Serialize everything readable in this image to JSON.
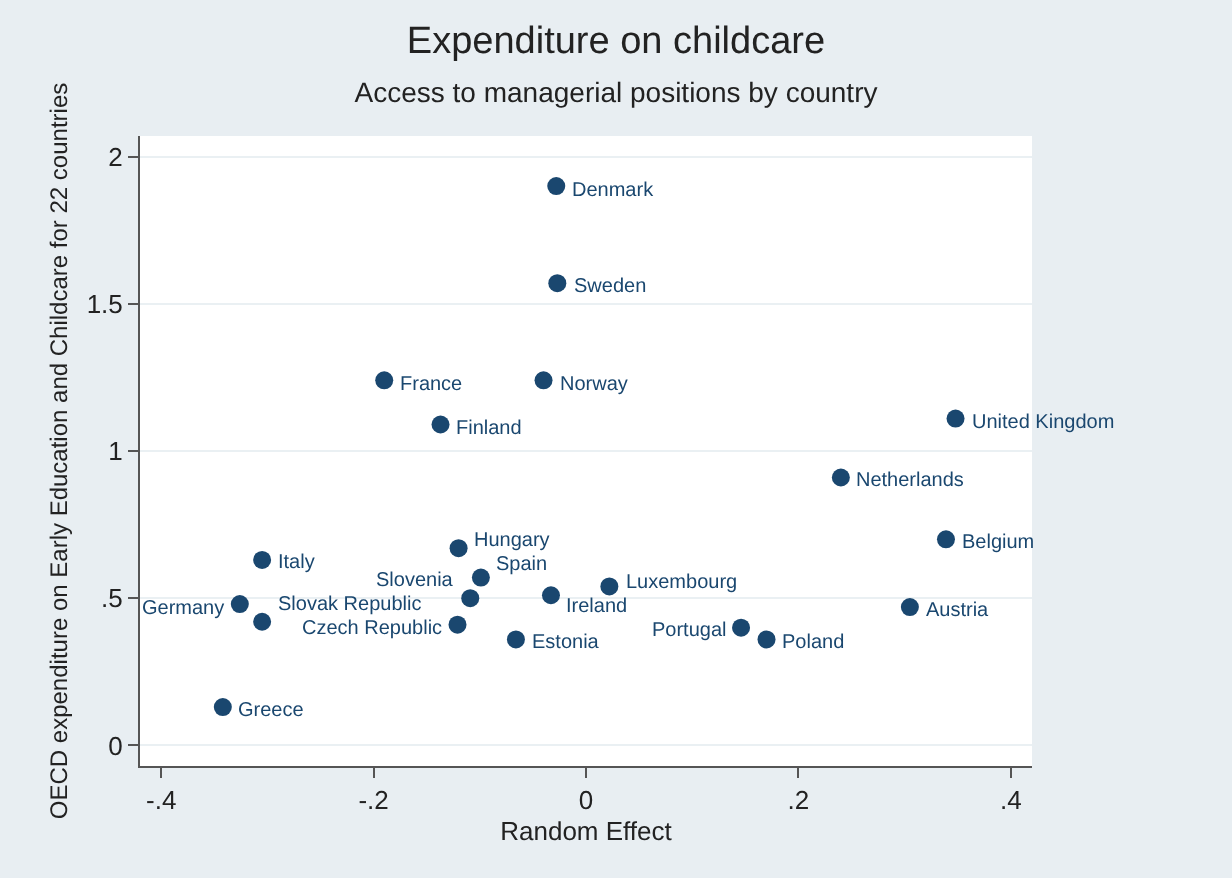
{
  "chart_data": {
    "type": "scatter",
    "title": "Expenditure on childcare",
    "subtitle": "Access to managerial positions by country",
    "xlabel": "Random Effect",
    "ylabel": "OECD expenditure on Early Education and Childcare for 22 countries",
    "x": [
      -0.028,
      -0.027,
      -0.19,
      -0.04,
      -0.137,
      0.348,
      0.24,
      0.339,
      0.305,
      0.022,
      0.146,
      0.17,
      -0.305,
      -0.326,
      -0.305,
      -0.342,
      -0.12,
      -0.099,
      -0.109,
      -0.033,
      -0.121,
      -0.066
    ],
    "series": [
      {
        "color": "#1a476f",
        "values": [
          1.9,
          1.57,
          1.24,
          1.24,
          1.09,
          1.11,
          0.91,
          0.7,
          0.47,
          0.54,
          0.4,
          0.36,
          0.63,
          0.48,
          0.42,
          0.13,
          0.67,
          0.57,
          0.5,
          0.51,
          0.41,
          0.36
        ]
      }
    ],
    "annotations": [
      {
        "text": "Denmark",
        "x": -0.028,
        "y": 1.9
      },
      {
        "text": "Sweden",
        "x": -0.027,
        "y": 1.57
      },
      {
        "text": "France",
        "x": -0.19,
        "y": 1.24
      },
      {
        "text": "Norway",
        "x": -0.04,
        "y": 1.24
      },
      {
        "text": "Finland",
        "x": -0.137,
        "y": 1.09
      },
      {
        "text": "United Kingdom",
        "x": 0.348,
        "y": 1.11
      },
      {
        "text": "Netherlands",
        "x": 0.24,
        "y": 0.91
      },
      {
        "text": "Belgium",
        "x": 0.339,
        "y": 0.7
      },
      {
        "text": "Austria",
        "x": 0.305,
        "y": 0.47
      },
      {
        "text": "Luxembourg",
        "x": 0.022,
        "y": 0.54
      },
      {
        "text": "Portugal",
        "x": 0.146,
        "y": 0.4
      },
      {
        "text": "Poland",
        "x": 0.17,
        "y": 0.36
      },
      {
        "text": "Italy",
        "x": -0.305,
        "y": 0.63
      },
      {
        "text": "Germany",
        "x": -0.326,
        "y": 0.48
      },
      {
        "text": "Slovak Republic",
        "x": -0.305,
        "y": 0.42
      },
      {
        "text": "Greece",
        "x": -0.342,
        "y": 0.13
      },
      {
        "text": "Hungary",
        "x": -0.12,
        "y": 0.67
      },
      {
        "text": "Spain",
        "x": -0.099,
        "y": 0.57
      },
      {
        "text": "Slovenia",
        "x": -0.109,
        "y": 0.5
      },
      {
        "text": "Ireland",
        "x": -0.033,
        "y": 0.51
      },
      {
        "text": "Czech Republic",
        "x": -0.121,
        "y": 0.41
      },
      {
        "text": "Estonia",
        "x": -0.066,
        "y": 0.36
      }
    ],
    "xlim": [
      -0.42,
      0.42
    ],
    "xticks": [
      {
        "value": -0.4,
        "label": "-.4"
      },
      {
        "value": -0.2,
        "label": "-.2"
      },
      0,
      {
        "value": 0.2,
        "label": ".2"
      },
      {
        "value": 0.4,
        "label": ".4"
      }
    ],
    "ylim": [
      -0.07,
      2.07
    ],
    "yticks": [
      0,
      {
        "value": 0.5,
        "label": ".5"
      },
      1,
      {
        "value": 1.5,
        "label": "1.5"
      },
      2
    ],
    "grid": "y",
    "marker": "circle"
  }
}
